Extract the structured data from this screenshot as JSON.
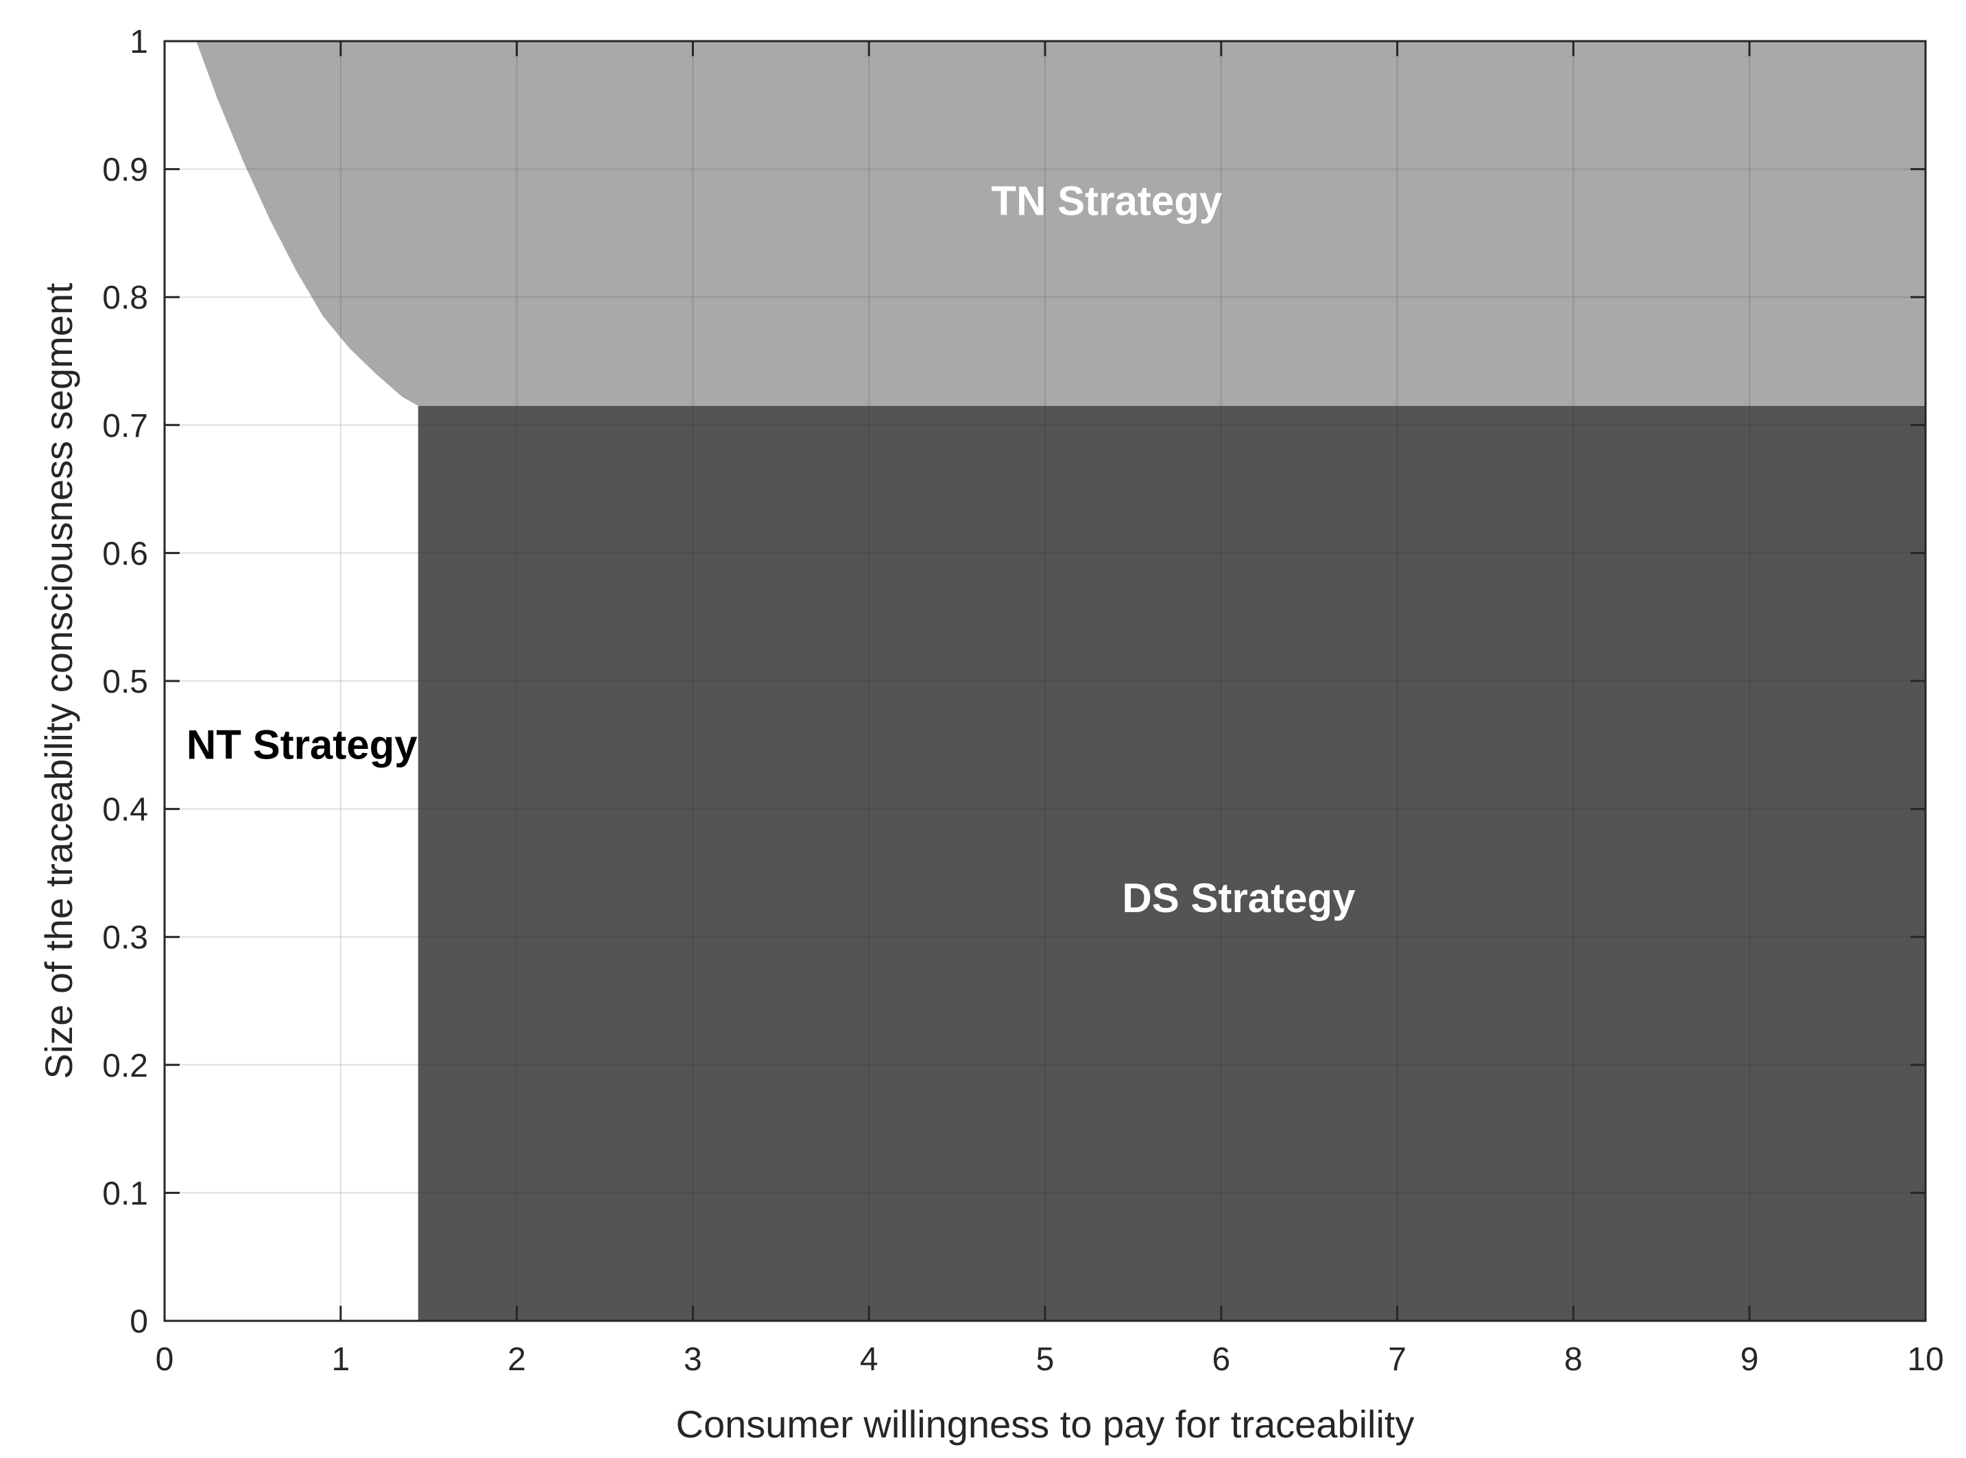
{
  "chart_data": {
    "type": "area",
    "xlabel": "Consumer willingness to pay for traceability",
    "ylabel": "Size of the traceability consciousness segment",
    "xlim": [
      0,
      10
    ],
    "ylim": [
      0,
      1
    ],
    "xticks": [
      0,
      1,
      2,
      3,
      4,
      5,
      6,
      7,
      8,
      9,
      10
    ],
    "yticks": [
      0,
      0.1,
      0.2,
      0.3,
      0.4,
      0.5,
      0.6,
      0.7,
      0.8,
      0.9,
      1
    ],
    "xtick_labels": [
      "0",
      "1",
      "2",
      "3",
      "4",
      "5",
      "6",
      "7",
      "8",
      "9",
      "10"
    ],
    "ytick_labels": [
      "0",
      "0.1",
      "0.2",
      "0.3",
      "0.4",
      "0.5",
      "0.6",
      "0.7",
      "0.8",
      "0.9",
      "1"
    ],
    "grid": true,
    "regions": [
      {
        "label": "NT Strategy",
        "color": "#ffffff",
        "label_color": "#000000",
        "label_x": 0.78,
        "label_y": 0.45
      },
      {
        "label": "TN Strategy",
        "color": "#a9a9a9",
        "label_color": "#ffffff",
        "label_x": 5.35,
        "label_y": 0.875,
        "boundary_curve": {
          "description": "NT/TN boundary, y decreasing with x from top edge to DS corner",
          "x": [
            0.18,
            0.3,
            0.45,
            0.6,
            0.75,
            0.9,
            1.05,
            1.2,
            1.35,
            1.44
          ],
          "y": [
            1.0,
            0.955,
            0.905,
            0.86,
            0.82,
            0.785,
            0.76,
            0.74,
            0.722,
            0.715
          ]
        }
      },
      {
        "label": "DS Strategy",
        "color": "#545454",
        "label_color": "#ffffff",
        "label_x": 6.1,
        "label_y": 0.33,
        "x_min": 1.44,
        "y_max": 0.715
      }
    ]
  }
}
